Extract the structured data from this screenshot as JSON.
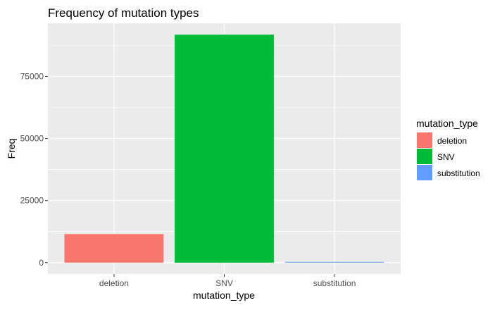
{
  "chart_data": {
    "type": "bar",
    "title": "Frequency of mutation types",
    "xlabel": "mutation_type",
    "ylabel": "Freq",
    "categories": [
      "deletion",
      "SNV",
      "substitution"
    ],
    "values": [
      11500,
      91800,
      300
    ],
    "colors": [
      "#F8766D",
      "#00BA38",
      "#619CFF"
    ],
    "ylim": [
      -4600,
      96400
    ],
    "yticks": [
      0,
      25000,
      50000,
      75000
    ],
    "ytick_labels": [
      "0",
      "25000",
      "50000",
      "75000"
    ],
    "grid": true,
    "legend": {
      "title": "mutation_type",
      "position": "right",
      "entries": [
        "deletion",
        "SNV",
        "substitution"
      ]
    }
  }
}
